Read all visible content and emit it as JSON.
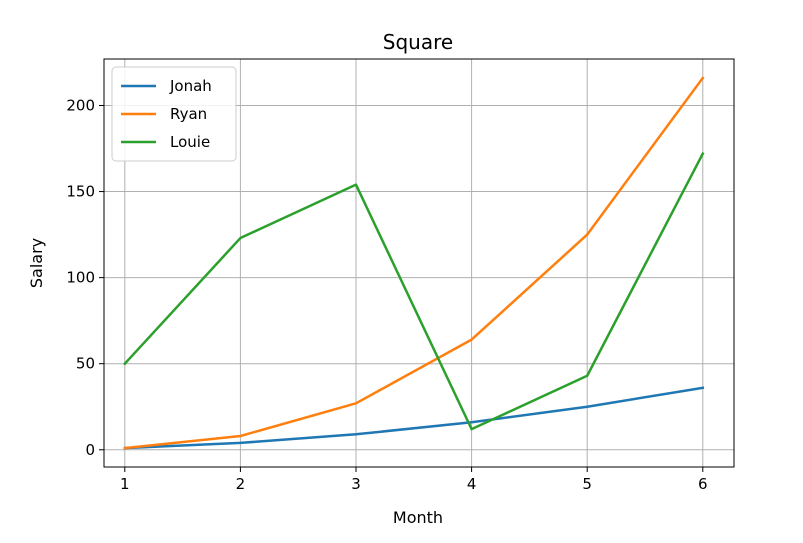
{
  "chart_data": {
    "type": "line",
    "title": "Square",
    "xlabel": "Month",
    "ylabel": "Salary",
    "x": [
      1,
      2,
      3,
      4,
      5,
      6
    ],
    "xlim": [
      0.82,
      6.27
    ],
    "ylim": [
      -10,
      227
    ],
    "xticks": [
      1,
      2,
      3,
      4,
      5,
      6
    ],
    "yticks": [
      0,
      50,
      100,
      150,
      200
    ],
    "grid": true,
    "legend_position": "top-left",
    "series": [
      {
        "name": "Jonah",
        "color": "#1f77b4",
        "values": [
          1,
          4,
          9,
          16,
          25,
          36
        ]
      },
      {
        "name": "Ryan",
        "color": "#ff7f0e",
        "values": [
          1,
          8,
          27,
          64,
          125,
          216
        ]
      },
      {
        "name": "Louie",
        "color": "#2ca02c",
        "values": [
          50,
          123,
          154,
          12,
          43,
          172
        ]
      }
    ]
  }
}
